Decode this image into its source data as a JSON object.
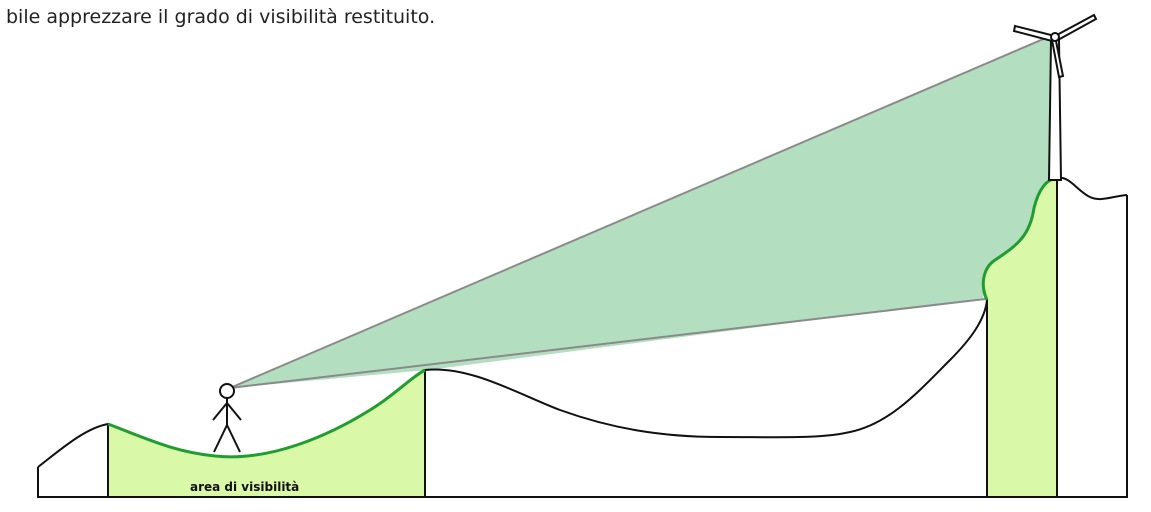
{
  "caption": "bile apprezzare il grado di visibilità restituito.",
  "diagram": {
    "area_label": "area di visibilità",
    "colors": {
      "visibility_fill": "#d9f9a8",
      "visibility_outline": "#1f9e2f",
      "sightline_fill": "#b3dfc0",
      "sightline_stroke": "#8a8a8a",
      "terrain_stroke": "#111111"
    },
    "icons": [
      "observer-figure-icon",
      "wind-turbine-icon"
    ]
  }
}
